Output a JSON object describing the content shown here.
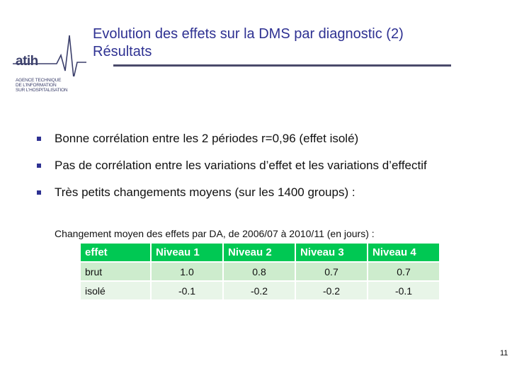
{
  "logo": {
    "name": "atih",
    "subtitle_lines": [
      "AGENCE TECHNIQUE",
      "DE L'INFORMATION",
      "SUR L'HOSPITALISATION"
    ]
  },
  "title": {
    "line1": "Evolution des effets sur la DMS par diagnostic (2)",
    "line2": "Résultats"
  },
  "bullets": [
    "Bonne corrélation entre les 2 périodes r=0,96 (effet isolé)",
    "Pas de corrélation entre les variations d’effet et les variations d’effectif",
    "Très petits changements moyens (sur les 1400 groups) :"
  ],
  "caption": "Changement moyen des effets par DA, de 2006/07 à 2010/11 (en jours) :",
  "table": {
    "headers": [
      "effet",
      "Niveau 1",
      "Niveau 2",
      "Niveau 3",
      "Niveau 4"
    ],
    "rows": [
      [
        "brut",
        "1.0",
        "0.8",
        "0.7",
        "0.7"
      ],
      [
        "isolé",
        "-0.1",
        "-0.2",
        "-0.2",
        "-0.1"
      ]
    ]
  },
  "colors": {
    "title": "#2e3192",
    "table_header": "#00c853",
    "row_odd": "#cdeccd",
    "row_even": "#e8f5e8"
  },
  "page_number": "11"
}
